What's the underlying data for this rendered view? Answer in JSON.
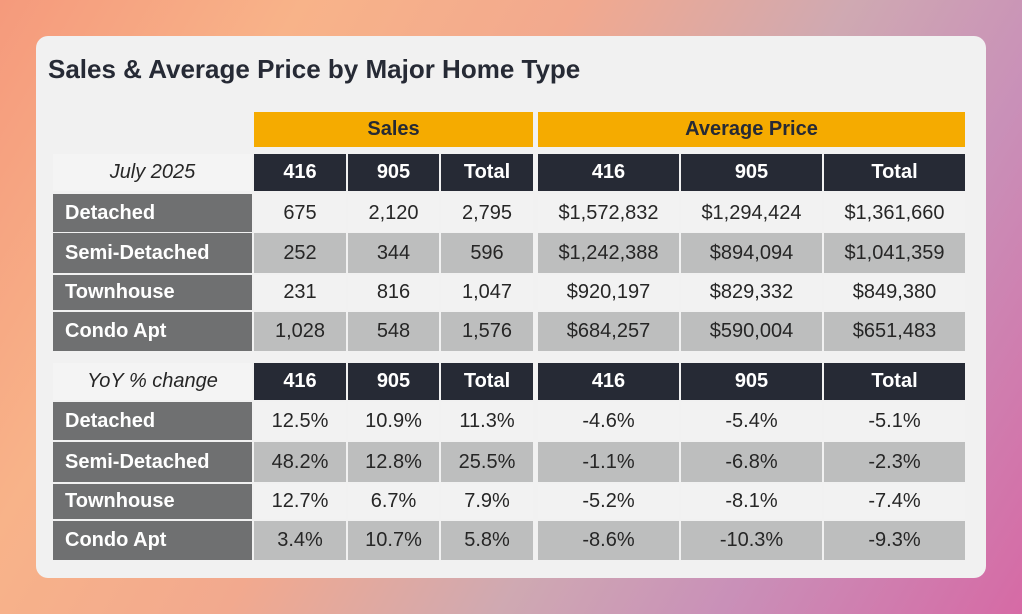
{
  "title": "Sales & Average Price by Major Home Type",
  "group_headers": [
    "Sales",
    "Average Price"
  ],
  "column_headers": [
    "416",
    "905",
    "Total",
    "416",
    "905",
    "Total"
  ],
  "row_labels": [
    "Detached",
    "Semi-Detached",
    "Townhouse",
    "Condo Apt"
  ],
  "tables": [
    {
      "period_label": "July 2025",
      "rows": [
        [
          "675",
          "2,120",
          "2,795",
          "$1,572,832",
          "$1,294,424",
          "$1,361,660"
        ],
        [
          "252",
          "344",
          "596",
          "$1,242,388",
          "$894,094",
          "$1,041,359"
        ],
        [
          "231",
          "816",
          "1,047",
          "$920,197",
          "$829,332",
          "$849,380"
        ],
        [
          "1,028",
          "548",
          "1,576",
          "$684,257",
          "$590,004",
          "$651,483"
        ]
      ]
    },
    {
      "period_label": "YoY % change",
      "rows": [
        [
          "12.5%",
          "10.9%",
          "11.3%",
          "-4.6%",
          "-5.4%",
          "-5.1%"
        ],
        [
          "48.2%",
          "12.8%",
          "25.5%",
          "-1.1%",
          "-6.8%",
          "-2.3%"
        ],
        [
          "12.7%",
          "6.7%",
          "7.9%",
          "-5.2%",
          "-8.1%",
          "-7.4%"
        ],
        [
          "3.4%",
          "10.7%",
          "5.8%",
          "-8.6%",
          "-10.3%",
          "-9.3%"
        ]
      ]
    }
  ],
  "chart_data": {
    "type": "table",
    "title": "Sales & Average Price by Major Home Type",
    "column_groups": [
      {
        "name": "Sales",
        "columns": [
          "416",
          "905",
          "Total"
        ]
      },
      {
        "name": "Average Price",
        "columns": [
          "416",
          "905",
          "Total"
        ]
      }
    ],
    "categories": [
      "Detached",
      "Semi-Detached",
      "Townhouse",
      "Condo Apt"
    ],
    "sections": [
      {
        "label": "July 2025",
        "sales": {
          "416": [
            675,
            252,
            231,
            1028
          ],
          "905": [
            2120,
            344,
            816,
            548
          ],
          "Total": [
            2795,
            596,
            1047,
            1576
          ]
        },
        "average_price": {
          "416": [
            1572832,
            1242388,
            920197,
            684257
          ],
          "905": [
            1294424,
            894094,
            829332,
            590004
          ],
          "Total": [
            1361660,
            1041359,
            849380,
            651483
          ]
        }
      },
      {
        "label": "YoY % change",
        "sales": {
          "416": [
            12.5,
            48.2,
            12.7,
            3.4
          ],
          "905": [
            10.9,
            12.8,
            6.7,
            10.7
          ],
          "Total": [
            11.3,
            25.5,
            7.9,
            5.8
          ]
        },
        "average_price": {
          "416": [
            -4.6,
            -1.1,
            -5.2,
            -8.6
          ],
          "905": [
            -5.4,
            -6.8,
            -8.1,
            -10.3
          ],
          "Total": [
            -5.1,
            -2.3,
            -7.4,
            -9.3
          ]
        }
      }
    ]
  },
  "colors": {
    "group_header_bg": "#f5ab00",
    "column_header_bg": "#262a35",
    "row_label_bg": "#6f7071",
    "light_row_bg": "#f2f2f2",
    "dark_row_bg": "#bdbebe",
    "card_bg": "#f1f1f1"
  }
}
